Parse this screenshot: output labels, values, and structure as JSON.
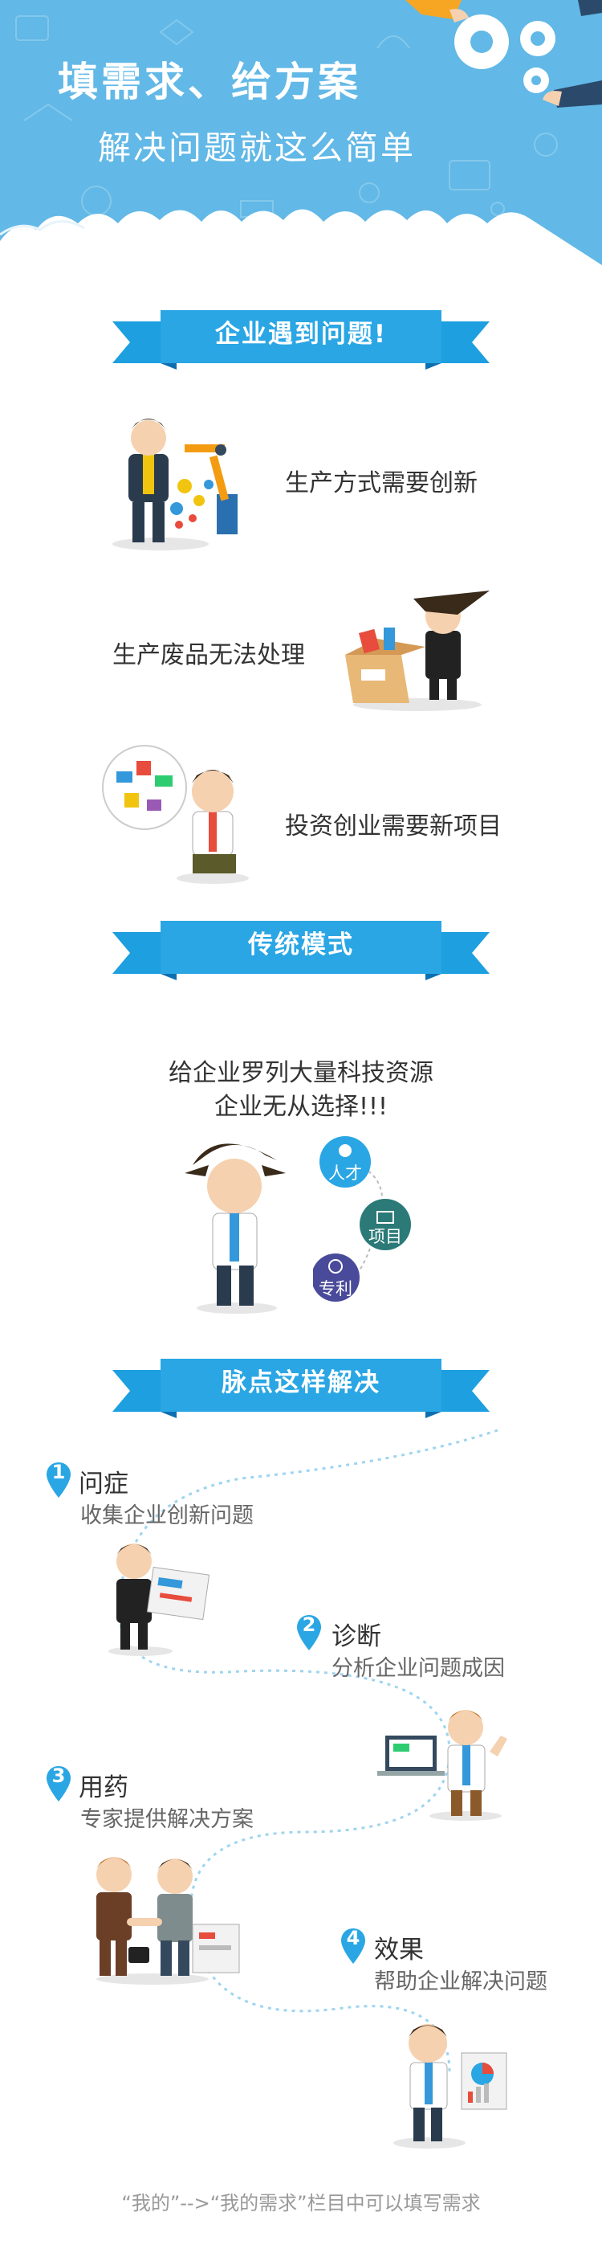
{
  "header": {
    "title": "填需求、给方案",
    "subtitle": "解决问题就这么简单"
  },
  "sections": {
    "problems": {
      "title": "企业遇到问题!",
      "items": [
        "生产方式需要创新",
        "生产废品无法处理",
        "投资创业需要新项目"
      ]
    },
    "traditional": {
      "title": "传统模式",
      "line1": "给企业罗列大量科技资源",
      "line2": "企业无从选择!!!",
      "bubbles": [
        "人才",
        "项目",
        "专利"
      ]
    },
    "solution": {
      "title": "脉点这样解决",
      "steps": [
        {
          "num": "1",
          "title": "问症",
          "desc": "收集企业创新问题"
        },
        {
          "num": "2",
          "title": "诊断",
          "desc": "分析企业问题成因"
        },
        {
          "num": "3",
          "title": "用药",
          "desc": "专家提供解决方案"
        },
        {
          "num": "4",
          "title": "效果",
          "desc": "帮助企业解决问题"
        }
      ]
    }
  },
  "footer": {
    "text": "“我的”-->“我的需求”栏目中可以填写需求"
  },
  "colors": {
    "header_bg": "#62b8e6",
    "banner": "#1d9fe0",
    "banner_dark": "#0d6fb0",
    "step_num": "#2aa6e4"
  },
  "icons": [
    "gear-icon",
    "hand-icon",
    "robot-arm-icon",
    "box-icon",
    "person-talent-icon",
    "document-icon",
    "lightbulb-patent-icon",
    "location-pin-icon"
  ]
}
